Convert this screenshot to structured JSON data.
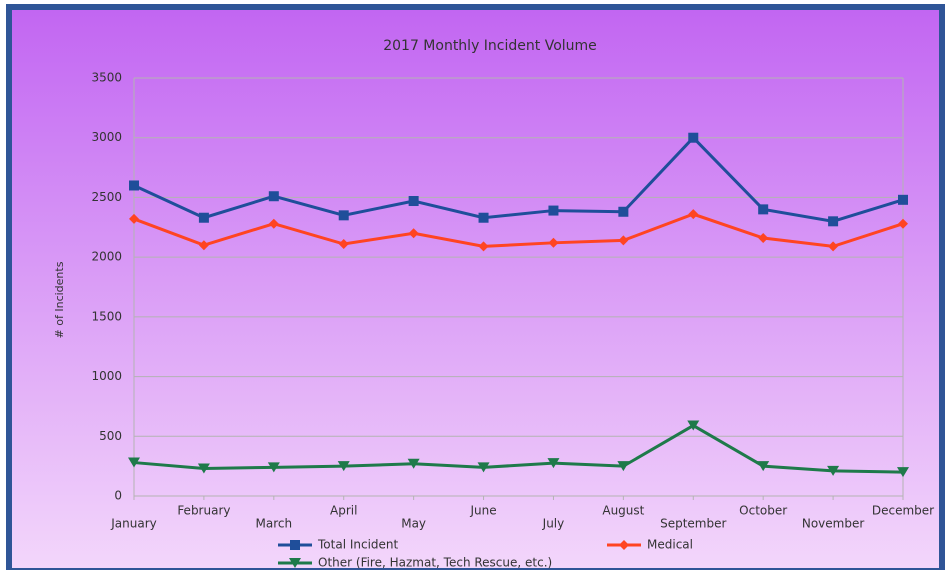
{
  "chart_data": {
    "type": "line",
    "title": "2017 Monthly Incident Volume",
    "y_label": "# of Incidents",
    "categories": [
      "January",
      "February",
      "March",
      "April",
      "May",
      "June",
      "July",
      "August",
      "September",
      "October",
      "November",
      "December"
    ],
    "series": [
      {
        "name": "Total Incident",
        "color": "#1f4e9a",
        "marker": "square",
        "values": [
          2600,
          2330,
          2510,
          2350,
          2470,
          2330,
          2390,
          2380,
          3000,
          2400,
          2300,
          2480
        ]
      },
      {
        "name": "Medical",
        "color": "#ff4422",
        "marker": "diamond",
        "values": [
          2320,
          2100,
          2280,
          2110,
          2200,
          2090,
          2120,
          2140,
          2360,
          2160,
          2090,
          2280
        ]
      },
      {
        "name": "Other (Fire, Hazmat, Tech Rescue, etc.)",
        "color": "#1e7a4a",
        "marker": "triangle-down",
        "values": [
          280,
          230,
          240,
          250,
          270,
          240,
          275,
          250,
          590,
          250,
          210,
          200
        ]
      }
    ],
    "ylim": [
      0,
      3500
    ],
    "yticks": [
      0,
      500,
      1000,
      1500,
      2000,
      2500,
      3000,
      3500
    ],
    "grid": true,
    "legend": "bottom"
  }
}
